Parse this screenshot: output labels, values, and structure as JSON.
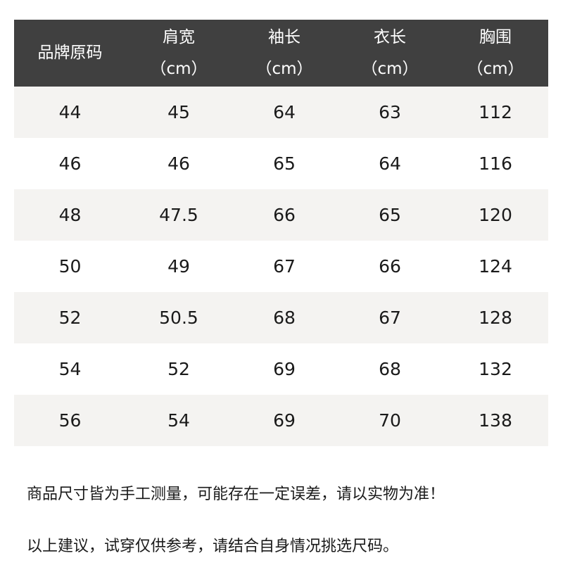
{
  "headers": [
    {
      "line1": "品牌原码",
      "line2": ""
    },
    {
      "line1": "肩宽",
      "line2": "（cm）"
    },
    {
      "line1": "袖长",
      "line2": "（cm）"
    },
    {
      "line1": "衣长",
      "line2": "（cm）"
    },
    {
      "line1": "胸围",
      "line2": "（cm）"
    }
  ],
  "rows": [
    [
      "44",
      "45",
      "64",
      "63",
      "112"
    ],
    [
      "46",
      "46",
      "65",
      "64",
      "116"
    ],
    [
      "48",
      "47.5",
      "66",
      "65",
      "120"
    ],
    [
      "50",
      "49",
      "67",
      "66",
      "124"
    ],
    [
      "52",
      "50.5",
      "68",
      "67",
      "128"
    ],
    [
      "54",
      "52",
      "69",
      "68",
      "132"
    ],
    [
      "56",
      "54",
      "69",
      "70",
      "138"
    ]
  ],
  "notes": [
    "商品尺寸皆为手工测量，可能存在一定误差，请以实物为准！",
    "以上建议，试穿仅供参考，请结合自身情况挑选尺码。"
  ],
  "colors": {
    "header_bg": "#404040",
    "stripe_bg": "#f4f3f1"
  }
}
